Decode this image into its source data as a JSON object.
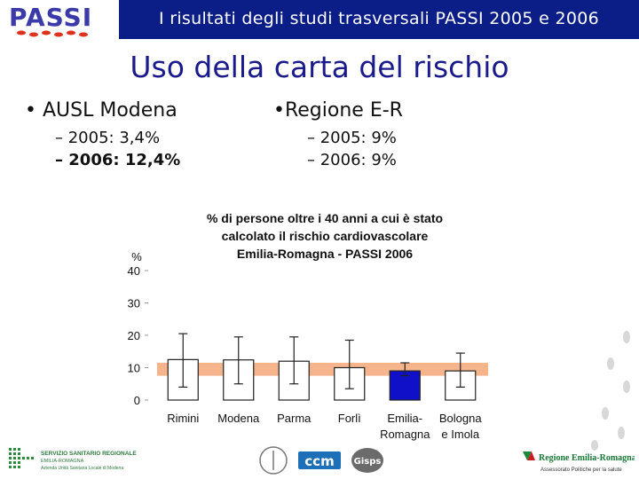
{
  "header": {
    "logo_text": "PASSI",
    "title": "I risultati degli studi trasversali  PASSI 2005 e 2006"
  },
  "main": {
    "title": "Uso della carta del rischio",
    "left": {
      "bullet": "• AUSL Modena",
      "items": [
        "– 2005: 3,4%",
        "– 2006: 12,4%"
      ]
    },
    "right": {
      "bullet": "•Regione E-R",
      "items": [
        "– 2005: 9%",
        "– 2006: 9%"
      ]
    }
  },
  "chart_data": {
    "type": "bar",
    "title_lines": [
      "% di persone oltre i 40 anni a cui è stato",
      "calcolato il rischio cardiovascolare",
      "Emilia-Romagna  -  PASSI 2006"
    ],
    "ylabel": "%",
    "ylim": [
      0,
      40
    ],
    "yticks": [
      0,
      10,
      20,
      30,
      40
    ],
    "categories": [
      [
        "Rimini"
      ],
      [
        "Modena"
      ],
      [
        "Parma"
      ],
      [
        "Forlì"
      ],
      [
        "Emilia-",
        "Romagna"
      ],
      [
        "Bologna",
        "e Imola"
      ]
    ],
    "values": [
      12.5,
      12.4,
      12,
      10,
      9,
      9
    ],
    "error_low": [
      4,
      5,
      5,
      3.5,
      7.5,
      4
    ],
    "error_high": [
      20.5,
      19.5,
      19.5,
      18.5,
      11.5,
      14.5
    ],
    "highlight_index": 4,
    "reference_band": [
      7.5,
      11.5
    ],
    "colors": {
      "bar_fill": "#ffffff",
      "bar_highlight": "#1010c8",
      "bar_edge": "#222222",
      "band": "#f6b48c",
      "text": "#111111"
    }
  },
  "footer": {
    "left_logo_lines": [
      "SERVIZIO SANITARIO REGIONALE",
      "EMILIA-ROMAGNA",
      "Azienda Unità Sanitaria Locale di Modena"
    ],
    "center_logo_text": "ccm",
    "center_logo2_text": "Gisps",
    "right_logo_lines": [
      "Regione Emilia-Romagna",
      "Assessorato Politiche per la salute"
    ]
  }
}
